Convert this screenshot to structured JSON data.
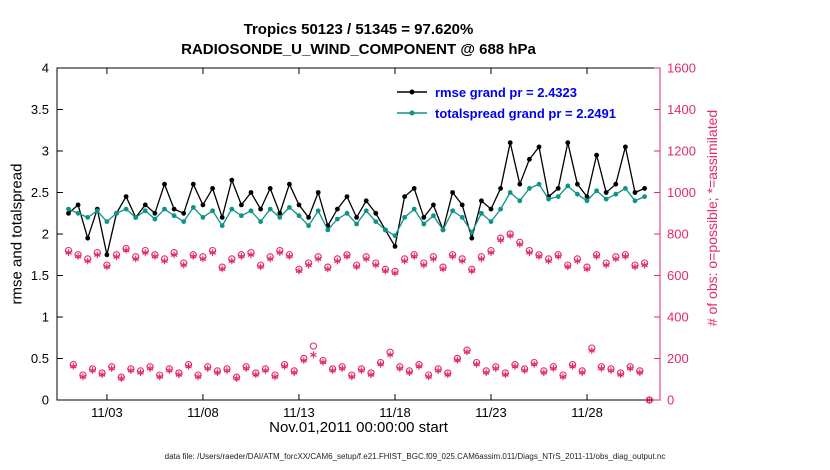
{
  "titles": {
    "line1": "Tropics 50123 / 51345 = 97.620%",
    "line2": "RADIOSONDE_U_WIND_COMPONENT @ 688 hPa"
  },
  "axes": {
    "left_label": "rmse and totalspread",
    "right_label": "# of obs: o=possible; *=assimilated",
    "x_label": "Nov.01,2011 00:00:00 start"
  },
  "legend": {
    "rmse_label": "rmse grand pr = 2.4323",
    "totalspread_label": "totalspread grand pr = 2.2491",
    "text_color": "#0000ee"
  },
  "caption": {
    "text": "data file: /Users/raeder/DAI/ATM_forcXX/CAM6_setup/f.e21.FHIST_BGC.f09_025.CAM6assim.011/Diags_NTrS_2011-11/obs_diag_output.nc"
  },
  "chart_data": {
    "type": "line",
    "title": "Tropics 50123 / 51345 = 97.620%",
    "subtitle": "RADIOSONDE_U_WIND_COMPONENT @ 688 hPa",
    "xlabel": "Nov.01,2011 00:00:00 start",
    "ylabel_left": "rmse and totalspread",
    "ylabel_right": "# of obs: o=possible; *=assimilated",
    "grid": false,
    "legend_position": "top-center-right-inside",
    "xlim_days": [
      -0.6,
      30.8
    ],
    "ylim_left": [
      0,
      4
    ],
    "ylim_right": [
      0,
      1600
    ],
    "x_ticks": {
      "days": [
        2,
        7,
        12,
        17,
        22,
        27
      ],
      "labels": [
        "11/03",
        "11/08",
        "11/13",
        "11/18",
        "11/23",
        "11/28"
      ]
    },
    "y_ticks_left": {
      "values": [
        0,
        0.5,
        1,
        1.5,
        2,
        2.5,
        3,
        3.5,
        4
      ],
      "labels": [
        "0",
        "0.5",
        "1",
        "1.5",
        "2",
        "2.5",
        "3",
        "3.5",
        "4"
      ]
    },
    "y_ticks_right": {
      "values": [
        0,
        200,
        400,
        600,
        800,
        1000,
        1200,
        1400,
        1600
      ],
      "labels": [
        "0",
        "200",
        "400",
        "600",
        "800",
        "1000",
        "1200",
        "1400",
        "1600"
      ]
    },
    "series": [
      {
        "name": "rmse",
        "grand_mean": 2.4323,
        "color": "#000000",
        "x_start_day": 0,
        "x_step_days": 0.5,
        "values": [
          2.25,
          2.35,
          1.95,
          2.3,
          1.75,
          2.25,
          2.45,
          2.2,
          2.35,
          2.25,
          2.6,
          2.3,
          2.25,
          2.6,
          2.35,
          2.55,
          2.2,
          2.65,
          2.35,
          2.5,
          2.3,
          2.55,
          2.25,
          2.6,
          2.35,
          2.2,
          2.5,
          2.1,
          2.3,
          2.45,
          2.2,
          2.4,
          2.25,
          2.05,
          1.85,
          2.45,
          2.55,
          2.2,
          2.35,
          2.05,
          2.5,
          2.35,
          1.95,
          2.4,
          2.3,
          2.55,
          3.1,
          2.6,
          2.9,
          3.05,
          2.45,
          2.55,
          3.1,
          2.6,
          2.45,
          2.95,
          2.5,
          2.6,
          3.05,
          2.5,
          2.55
        ]
      },
      {
        "name": "totalspread",
        "grand_mean": 2.2491,
        "color": "#0f9287",
        "x_start_day": 0,
        "x_step_days": 0.5,
        "values": [
          2.3,
          2.25,
          2.2,
          2.28,
          2.15,
          2.25,
          2.3,
          2.2,
          2.28,
          2.18,
          2.3,
          2.22,
          2.15,
          2.32,
          2.2,
          2.28,
          2.1,
          2.3,
          2.22,
          2.28,
          2.15,
          2.3,
          2.2,
          2.32,
          2.22,
          2.1,
          2.28,
          2.05,
          2.18,
          2.25,
          2.12,
          2.28,
          2.15,
          2.05,
          1.98,
          2.2,
          2.3,
          2.12,
          2.22,
          2.05,
          2.28,
          2.2,
          2.02,
          2.25,
          2.15,
          2.3,
          2.5,
          2.4,
          2.55,
          2.6,
          2.42,
          2.45,
          2.58,
          2.48,
          2.4,
          2.52,
          2.42,
          2.48,
          2.55,
          2.4,
          2.45
        ]
      }
    ],
    "obs_series": {
      "name": "number-of-observations",
      "color": "#e42a6a",
      "marker_possible": "o",
      "marker_assimilated": "*",
      "high_band": {
        "x_start_day": 0,
        "x_step_days": 0.5,
        "possible": [
          720,
          700,
          680,
          710,
          650,
          700,
          730,
          690,
          720,
          700,
          680,
          710,
          660,
          700,
          690,
          720,
          640,
          680,
          700,
          710,
          650,
          690,
          720,
          700,
          630,
          660,
          690,
          640,
          680,
          700,
          650,
          690,
          660,
          630,
          620,
          680,
          700,
          660,
          690,
          640,
          700,
          680,
          630,
          690,
          720,
          780,
          800,
          760,
          720,
          700,
          680,
          700,
          650,
          680,
          640,
          700,
          660,
          690,
          700,
          650,
          660
        ],
        "assimilated": [
          710,
          692,
          670,
          700,
          642,
          690,
          722,
          680,
          710,
          692,
          670,
          700,
          650,
          692,
          680,
          710,
          632,
          670,
          692,
          700,
          642,
          680,
          710,
          692,
          622,
          650,
          680,
          632,
          670,
          692,
          642,
          680,
          650,
          622,
          612,
          670,
          692,
          650,
          680,
          632,
          692,
          670,
          622,
          680,
          710,
          770,
          792,
          750,
          710,
          692,
          670,
          692,
          642,
          670,
          632,
          692,
          650,
          680,
          692,
          642,
          650
        ]
      },
      "low_band": {
        "x_start_day": 0.25,
        "x_step_days": 0.5,
        "possible": [
          170,
          120,
          150,
          130,
          160,
          110,
          150,
          140,
          160,
          120,
          150,
          130,
          170,
          120,
          160,
          140,
          150,
          110,
          160,
          130,
          150,
          120,
          170,
          140,
          200,
          260,
          190,
          150,
          160,
          120,
          150,
          130,
          180,
          230,
          160,
          140,
          170,
          120,
          150,
          130,
          200,
          240,
          180,
          140,
          160,
          130,
          170,
          150,
          180,
          140,
          160,
          120,
          170,
          140,
          250,
          160,
          150,
          130,
          160,
          140,
          0
        ],
        "assimilated": [
          162,
          112,
          142,
          122,
          152,
          104,
          142,
          132,
          152,
          112,
          142,
          122,
          162,
          112,
          152,
          132,
          142,
          104,
          152,
          122,
          142,
          112,
          162,
          132,
          190,
          218,
          182,
          142,
          152,
          112,
          142,
          122,
          172,
          218,
          152,
          132,
          162,
          112,
          142,
          122,
          192,
          232,
          172,
          132,
          152,
          122,
          162,
          142,
          172,
          132,
          152,
          112,
          162,
          132,
          238,
          152,
          142,
          122,
          152,
          132,
          0
        ]
      }
    }
  }
}
